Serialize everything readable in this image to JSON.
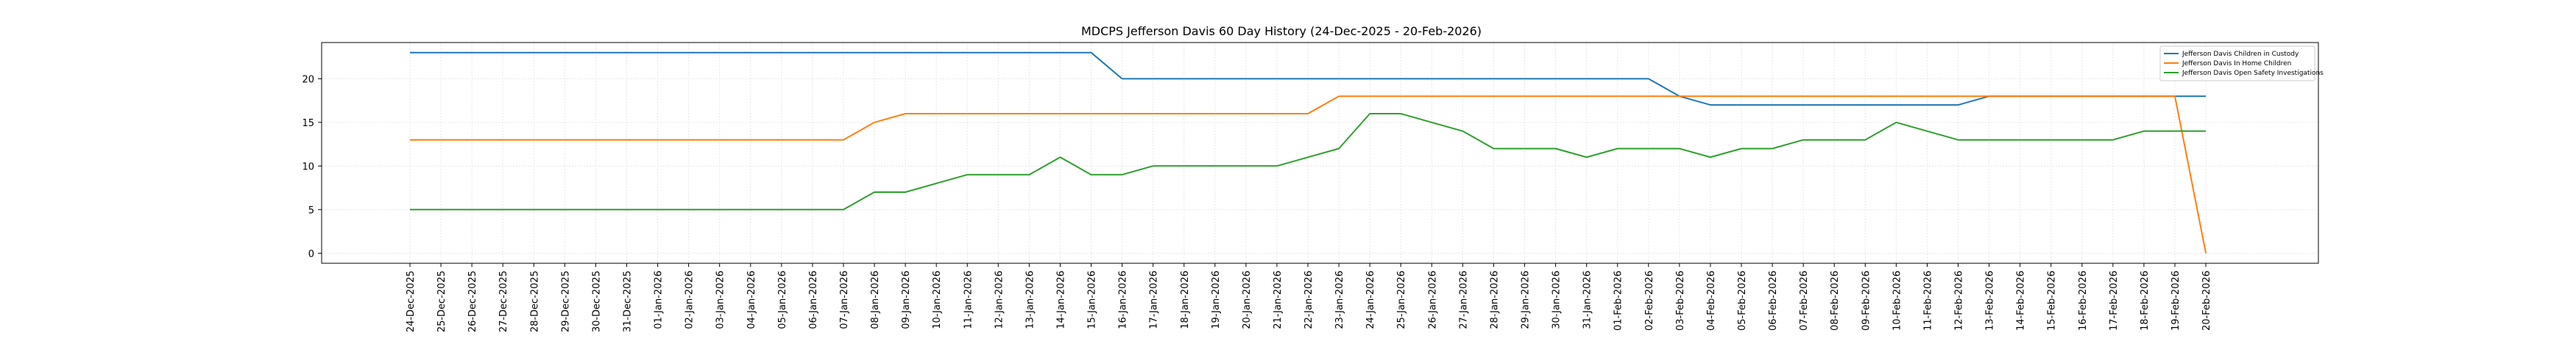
{
  "chart_data": {
    "type": "line",
    "title": "MDCPS Jefferson Davis 60 Day History (24-Dec-2025 - 20-Feb-2026)",
    "xlabel": "",
    "ylabel": "",
    "ylim": [
      -1.15,
      24.15
    ],
    "yticks": [
      0,
      5,
      10,
      15,
      20
    ],
    "grid": true,
    "legend_position": "top-right",
    "categories": [
      "24-Dec-2025",
      "25-Dec-2025",
      "26-Dec-2025",
      "27-Dec-2025",
      "28-Dec-2025",
      "29-Dec-2025",
      "30-Dec-2025",
      "31-Dec-2025",
      "01-Jan-2026",
      "02-Jan-2026",
      "03-Jan-2026",
      "04-Jan-2026",
      "05-Jan-2026",
      "06-Jan-2026",
      "07-Jan-2026",
      "08-Jan-2026",
      "09-Jan-2026",
      "10-Jan-2026",
      "11-Jan-2026",
      "12-Jan-2026",
      "13-Jan-2026",
      "14-Jan-2026",
      "15-Jan-2026",
      "16-Jan-2026",
      "17-Jan-2026",
      "18-Jan-2026",
      "19-Jan-2026",
      "20-Jan-2026",
      "21-Jan-2026",
      "22-Jan-2026",
      "23-Jan-2026",
      "24-Jan-2026",
      "25-Jan-2026",
      "26-Jan-2026",
      "27-Jan-2026",
      "28-Jan-2026",
      "29-Jan-2026",
      "30-Jan-2026",
      "31-Jan-2026",
      "01-Feb-2026",
      "02-Feb-2026",
      "03-Feb-2026",
      "04-Feb-2026",
      "05-Feb-2026",
      "06-Feb-2026",
      "07-Feb-2026",
      "08-Feb-2026",
      "09-Feb-2026",
      "10-Feb-2026",
      "11-Feb-2026",
      "12-Feb-2026",
      "13-Feb-2026",
      "14-Feb-2026",
      "15-Feb-2026",
      "16-Feb-2026",
      "17-Feb-2026",
      "18-Feb-2026",
      "19-Feb-2026",
      "20-Feb-2026"
    ],
    "series": [
      {
        "name": "Jefferson Davis Children in Custody",
        "color": "#1f77b4",
        "values": [
          23,
          23,
          23,
          23,
          23,
          23,
          23,
          23,
          23,
          23,
          23,
          23,
          23,
          23,
          23,
          23,
          23,
          23,
          23,
          23,
          23,
          23,
          23,
          20,
          20,
          20,
          20,
          20,
          20,
          20,
          20,
          20,
          20,
          20,
          20,
          20,
          20,
          20,
          20,
          20,
          20,
          18,
          17,
          17,
          17,
          17,
          17,
          17,
          17,
          17,
          17,
          18,
          18,
          18,
          18,
          18,
          18,
          18,
          18
        ]
      },
      {
        "name": "Jefferson Davis In Home Children",
        "color": "#ff7f0e",
        "values": [
          13,
          13,
          13,
          13,
          13,
          13,
          13,
          13,
          13,
          13,
          13,
          13,
          13,
          13,
          13,
          15,
          16,
          16,
          16,
          16,
          16,
          16,
          16,
          16,
          16,
          16,
          16,
          16,
          16,
          16,
          18,
          18,
          18,
          18,
          18,
          18,
          18,
          18,
          18,
          18,
          18,
          18,
          18,
          18,
          18,
          18,
          18,
          18,
          18,
          18,
          18,
          18,
          18,
          18,
          18,
          18,
          18,
          18,
          0
        ]
      },
      {
        "name": "Jefferson Davis Open Safety Investigations",
        "color": "#2ca02c",
        "values": [
          5,
          5,
          5,
          5,
          5,
          5,
          5,
          5,
          5,
          5,
          5,
          5,
          5,
          5,
          5,
          7,
          7,
          8,
          9,
          9,
          9,
          11,
          9,
          9,
          10,
          10,
          10,
          10,
          10,
          11,
          12,
          16,
          16,
          15,
          14,
          12,
          12,
          12,
          11,
          12,
          12,
          12,
          11,
          12,
          12,
          13,
          13,
          13,
          15,
          14,
          13,
          13,
          13,
          13,
          13,
          13,
          14,
          14,
          14
        ]
      }
    ]
  }
}
